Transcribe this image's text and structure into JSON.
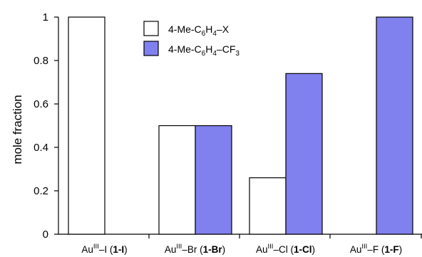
{
  "chart_data": {
    "type": "bar",
    "ylabel": "mole fraction",
    "ylim": [
      0,
      1
    ],
    "yticks": [
      "0",
      "0.2",
      "0.4",
      "0.6",
      "0.8",
      "1"
    ],
    "yticks_values": [
      0,
      0.2,
      0.4,
      0.6,
      0.8,
      1.0
    ],
    "categories": [
      {
        "pre": "Au",
        "sup": "III",
        "mid": "–I (",
        "bold": "1-I",
        "post": ")"
      },
      {
        "pre": "Au",
        "sup": "III",
        "mid": "–Br (",
        "bold": "1-Br",
        "post": ")"
      },
      {
        "pre": "Au",
        "sup": "III",
        "mid": "–Cl (",
        "bold": "1-Cl",
        "post": ")"
      },
      {
        "pre": "Au",
        "sup": "III",
        "mid": "–F (",
        "bold": "1-F",
        "post": ")"
      }
    ],
    "series": [
      {
        "label_parts": [
          {
            "t": "4-Me-C"
          },
          {
            "t": "6",
            "sub": true
          },
          {
            "t": "H"
          },
          {
            "t": "4",
            "sub": true
          },
          {
            "t": "–X"
          }
        ],
        "color": "#ffffff",
        "values": [
          1.0,
          0.5,
          0.26,
          0.0
        ]
      },
      {
        "label_parts": [
          {
            "t": "4-Me-C"
          },
          {
            "t": "6",
            "sub": true
          },
          {
            "t": "H"
          },
          {
            "t": "4",
            "sub": true
          },
          {
            "t": "–CF"
          },
          {
            "t": "3",
            "sub": true
          }
        ],
        "color": "#8080ee",
        "values": [
          0.0,
          0.5,
          0.74,
          1.0
        ]
      }
    ],
    "legend_position": "top-center",
    "grid": false
  }
}
